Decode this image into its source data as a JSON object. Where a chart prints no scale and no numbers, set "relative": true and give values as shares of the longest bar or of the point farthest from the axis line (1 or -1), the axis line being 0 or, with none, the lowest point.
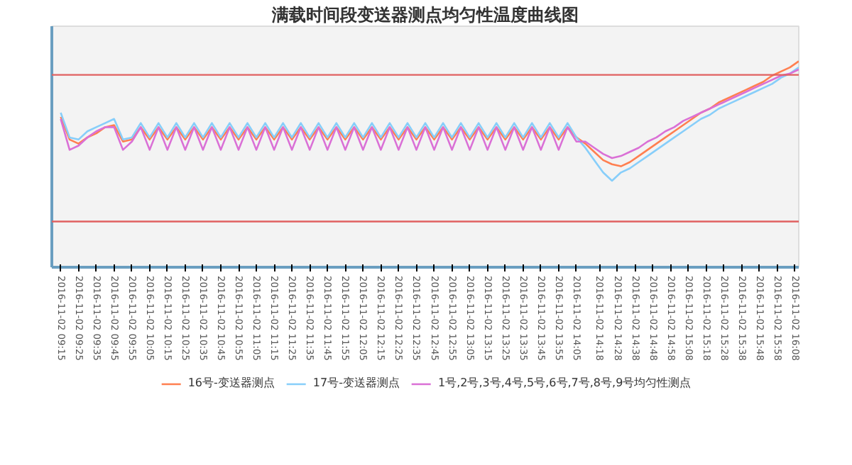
{
  "chart_data": {
    "type": "line",
    "title": "满载时间段变送器测点均匀性温度曲线图",
    "relative": true,
    "x": [
      "2016-11-02T09:15",
      "2016-11-02T09:20",
      "2016-11-02T09:25",
      "2016-11-02T09:30",
      "2016-11-02T09:35",
      "2016-11-02T09:40",
      "2016-11-02T09:45",
      "2016-11-02T09:50",
      "2016-11-02T09:55",
      "2016-11-02T10:00",
      "2016-11-02T10:05",
      "2016-11-02T10:10",
      "2016-11-02T10:15",
      "2016-11-02T10:20",
      "2016-11-02T10:25",
      "2016-11-02T10:30",
      "2016-11-02T10:35",
      "2016-11-02T10:40",
      "2016-11-02T10:45",
      "2016-11-02T10:50",
      "2016-11-02T10:55",
      "2016-11-02T11:00",
      "2016-11-02T11:05",
      "2016-11-02T11:10",
      "2016-11-02T11:15",
      "2016-11-02T11:20",
      "2016-11-02T11:25",
      "2016-11-02T11:30",
      "2016-11-02T11:35",
      "2016-11-02T11:40",
      "2016-11-02T11:45",
      "2016-11-02T11:50",
      "2016-11-02T11:55",
      "2016-11-02T12:00",
      "2016-11-02T12:05",
      "2016-11-02T12:10",
      "2016-11-02T12:15",
      "2016-11-02T12:20",
      "2016-11-02T12:25",
      "2016-11-02T12:30",
      "2016-11-02T12:35",
      "2016-11-02T12:40",
      "2016-11-02T12:45",
      "2016-11-02T12:50",
      "2016-11-02T12:55",
      "2016-11-02T13:00",
      "2016-11-02T13:05",
      "2016-11-02T13:10",
      "2016-11-02T13:15",
      "2016-11-02T13:20",
      "2016-11-02T13:25",
      "2016-11-02T13:30",
      "2016-11-02T13:35",
      "2016-11-02T13:40",
      "2016-11-02T13:45",
      "2016-11-02T13:50",
      "2016-11-02T13:55",
      "2016-11-02T14:00",
      "2016-11-02T14:05",
      "2016-11-02T14:10",
      "2016-11-02T14:15",
      "2016-11-02T14:20",
      "2016-11-02T14:25",
      "2016-11-02T14:30",
      "2016-11-02T14:35",
      "2016-11-02T14:40",
      "2016-11-02T14:45",
      "2016-11-02T14:50",
      "2016-11-02T14:55",
      "2016-11-02T15:00",
      "2016-11-02T15:05",
      "2016-11-02T15:10",
      "2016-11-02T15:15",
      "2016-11-02T15:20",
      "2016-11-02T15:25",
      "2016-11-02T15:30",
      "2016-11-02T15:35",
      "2016-11-02T15:40",
      "2016-11-02T15:45",
      "2016-11-02T15:50",
      "2016-11-02T15:55",
      "2016-11-02T16:00",
      "2016-11-02T16:05",
      "2016-11-02T16:10"
    ],
    "xlim": [
      "2016-11-02T09:10",
      "2016-11-02T16:10"
    ],
    "xticks": [
      {
        "value": "2016-11-02T09:15",
        "label": "2016-11-02 09:15"
      },
      {
        "value": "2016-11-02T09:25",
        "label": "2016-11-02 09:25"
      },
      {
        "value": "2016-11-02T09:35",
        "label": "2016-11-02 09:35"
      },
      {
        "value": "2016-11-02T09:45",
        "label": "2016-11-02 09:45"
      },
      {
        "value": "2016-11-02T09:55",
        "label": "2016-11-02 09:55"
      },
      {
        "value": "2016-11-02T10:05",
        "label": "2016-11-02 10:05"
      },
      {
        "value": "2016-11-02T10:15",
        "label": "2016-11-02 10:15"
      },
      {
        "value": "2016-11-02T10:25",
        "label": "2016-11-02 10:25"
      },
      {
        "value": "2016-11-02T10:35",
        "label": "2016-11-02 10:35"
      },
      {
        "value": "2016-11-02T10:45",
        "label": "2016-11-02 10:45"
      },
      {
        "value": "2016-11-02T10:55",
        "label": "2016-11-02 10:55"
      },
      {
        "value": "2016-11-02T11:05",
        "label": "2016-11-02 11:05"
      },
      {
        "value": "2016-11-02T11:15",
        "label": "2016-11-02 11:15"
      },
      {
        "value": "2016-11-02T11:25",
        "label": "2016-11-02 11:25"
      },
      {
        "value": "2016-11-02T11:35",
        "label": "2016-11-02 11:35"
      },
      {
        "value": "2016-11-02T11:45",
        "label": "2016-11-02 11:45"
      },
      {
        "value": "2016-11-02T11:55",
        "label": "2016-11-02 11:55"
      },
      {
        "value": "2016-11-02T12:05",
        "label": "2016-11-02 12:05"
      },
      {
        "value": "2016-11-02T12:15",
        "label": "2016-11-02 12:15"
      },
      {
        "value": "2016-11-02T12:25",
        "label": "2016-11-02 12:25"
      },
      {
        "value": "2016-11-02T12:35",
        "label": "2016-11-02 12:35"
      },
      {
        "value": "2016-11-02T12:45",
        "label": "2016-11-02 12:45"
      },
      {
        "value": "2016-11-02T12:55",
        "label": "2016-11-02 12:55"
      },
      {
        "value": "2016-11-02T13:05",
        "label": "2016-11-02 13:05"
      },
      {
        "value": "2016-11-02T13:15",
        "label": "2016-11-02 13:15"
      },
      {
        "value": "2016-11-02T13:25",
        "label": "2016-11-02 13:25"
      },
      {
        "value": "2016-11-02T13:35",
        "label": "2016-11-02 13:35"
      },
      {
        "value": "2016-11-02T13:45",
        "label": "2016-11-02 13:45"
      },
      {
        "value": "2016-11-02T13:55",
        "label": "2016-11-02 13:55"
      },
      {
        "value": "2016-11-02T14:05",
        "label": "2016-11-02 14:05"
      },
      {
        "value": "2016-11-02T14:18",
        "label": "2016-11-02 14:18"
      },
      {
        "value": "2016-11-02T14:28",
        "label": "2016-11-02 14:28"
      },
      {
        "value": "2016-11-02T14:38",
        "label": "2016-11-02 14:38"
      },
      {
        "value": "2016-11-02T14:48",
        "label": "2016-11-02 14:48"
      },
      {
        "value": "2016-11-02T14:58",
        "label": "2016-11-02 14:58"
      },
      {
        "value": "2016-11-02T15:08",
        "label": "2016-11-02 15:08"
      },
      {
        "value": "2016-11-02T15:18",
        "label": "2016-11-02 15:18"
      },
      {
        "value": "2016-11-02T15:28",
        "label": "2016-11-02 15:28"
      },
      {
        "value": "2016-11-02T15:38",
        "label": "2016-11-02 15:38"
      },
      {
        "value": "2016-11-02T15:48",
        "label": "2016-11-02 15:48"
      },
      {
        "value": "2016-11-02T15:58",
        "label": "2016-11-02 15:58"
      },
      {
        "value": "2016-11-02T16:08",
        "label": "2016-11-02 16:08"
      }
    ],
    "series": [
      {
        "name": "16号-变送器测点",
        "color": "#ff7f50",
        "values": [
          0.73,
          0.62,
          0.6,
          0.63,
          0.65,
          0.68,
          0.69,
          0.61,
          0.62,
          0.68,
          0.62,
          0.68,
          0.62,
          0.68,
          0.62,
          0.68,
          0.62,
          0.68,
          0.62,
          0.68,
          0.62,
          0.68,
          0.62,
          0.68,
          0.62,
          0.68,
          0.62,
          0.68,
          0.62,
          0.68,
          0.62,
          0.68,
          0.62,
          0.68,
          0.62,
          0.68,
          0.62,
          0.68,
          0.62,
          0.68,
          0.62,
          0.68,
          0.62,
          0.68,
          0.62,
          0.68,
          0.62,
          0.68,
          0.62,
          0.68,
          0.62,
          0.68,
          0.62,
          0.68,
          0.62,
          0.68,
          0.62,
          0.68,
          0.63,
          0.6,
          0.56,
          0.52,
          0.5,
          0.49,
          0.51,
          0.54,
          0.57,
          0.6,
          0.63,
          0.66,
          0.69,
          0.72,
          0.75,
          0.77,
          0.8,
          0.82,
          0.84,
          0.86,
          0.88,
          0.9,
          0.93,
          0.95,
          0.97,
          1.0
        ]
      },
      {
        "name": "17号-变送器测点",
        "color": "#87cefa",
        "values": [
          0.75,
          0.63,
          0.62,
          0.66,
          0.68,
          0.7,
          0.72,
          0.62,
          0.63,
          0.7,
          0.63,
          0.7,
          0.63,
          0.7,
          0.63,
          0.7,
          0.63,
          0.7,
          0.63,
          0.7,
          0.63,
          0.7,
          0.63,
          0.7,
          0.63,
          0.7,
          0.63,
          0.7,
          0.63,
          0.7,
          0.63,
          0.7,
          0.63,
          0.7,
          0.63,
          0.7,
          0.63,
          0.7,
          0.63,
          0.7,
          0.63,
          0.7,
          0.63,
          0.7,
          0.63,
          0.7,
          0.63,
          0.7,
          0.63,
          0.7,
          0.63,
          0.7,
          0.63,
          0.7,
          0.63,
          0.7,
          0.63,
          0.7,
          0.63,
          0.58,
          0.52,
          0.46,
          0.42,
          0.46,
          0.48,
          0.51,
          0.54,
          0.57,
          0.6,
          0.63,
          0.66,
          0.69,
          0.72,
          0.74,
          0.77,
          0.79,
          0.81,
          0.83,
          0.85,
          0.87,
          0.89,
          0.92,
          0.94,
          0.97
        ]
      },
      {
        "name": "1号,2号,3号,4号,5号,6号,7号,8号,9号均匀性测点",
        "color": "#da70d6",
        "values": [
          0.72,
          0.57,
          0.59,
          0.63,
          0.66,
          0.68,
          0.68,
          0.57,
          0.61,
          0.68,
          0.57,
          0.68,
          0.57,
          0.68,
          0.57,
          0.68,
          0.57,
          0.68,
          0.57,
          0.68,
          0.57,
          0.68,
          0.57,
          0.68,
          0.57,
          0.68,
          0.57,
          0.68,
          0.57,
          0.68,
          0.57,
          0.68,
          0.57,
          0.68,
          0.57,
          0.68,
          0.57,
          0.68,
          0.57,
          0.68,
          0.57,
          0.68,
          0.57,
          0.68,
          0.57,
          0.68,
          0.57,
          0.68,
          0.57,
          0.68,
          0.57,
          0.68,
          0.57,
          0.68,
          0.57,
          0.68,
          0.57,
          0.68,
          0.61,
          0.61,
          0.58,
          0.55,
          0.53,
          0.54,
          0.56,
          0.58,
          0.61,
          0.63,
          0.66,
          0.68,
          0.71,
          0.73,
          0.75,
          0.77,
          0.79,
          0.81,
          0.83,
          0.85,
          0.87,
          0.89,
          0.91,
          0.93,
          0.94,
          0.96
        ]
      }
    ],
    "ref_lines": [
      {
        "axis": "y",
        "value": 0.934,
        "color": "#e06060"
      },
      {
        "axis": "y",
        "value": 0.222,
        "color": "#e06060"
      }
    ],
    "legend": "bottom",
    "grid": false,
    "line_style": "solid"
  }
}
